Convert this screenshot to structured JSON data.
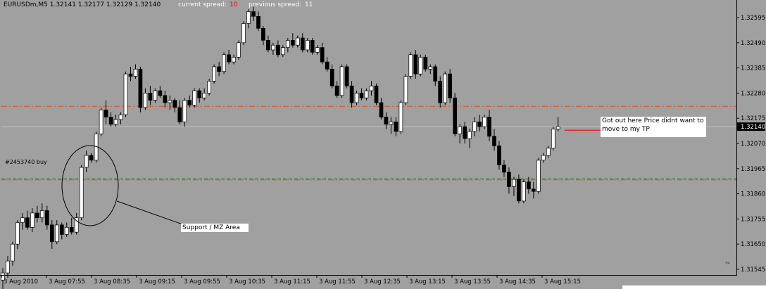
{
  "header": {
    "symbol_info": "EURUSDm,M5  1.32141 1.32177 1.32129 1.32140",
    "current_spread_label": "current spread:",
    "current_spread_value": "10",
    "previous_spread_label": "previous spread:",
    "previous_spread_value": "11"
  },
  "colors": {
    "background": "#a0a0a0",
    "bull_candle": "#ffffff",
    "bear_candle": "#000000",
    "tp_line": "#e05020",
    "entry_line_green": "#008000",
    "entry_line_red": "#e05020",
    "bid_line": "#c0c0c0",
    "exit_marker": "#ff0000",
    "current_price_label_bg": "#000000"
  },
  "chart_data": {
    "type": "candlestick",
    "symbol": "EURUSDm",
    "timeframe": "M5",
    "ylim": [
      1.3142,
      1.3264
    ],
    "y_ticks": [
      "1.32595",
      "1.32490",
      "1.32385",
      "1.32280",
      "1.32175",
      "1.32070",
      "1.31965",
      "1.31860",
      "1.31755",
      "1.31650",
      "1.31545"
    ],
    "x_ticks": [
      "3 Aug 2010",
      "3 Aug 07:55",
      "3 Aug 08:35",
      "3 Aug 09:15",
      "3 Aug 09:55",
      "3 Aug 10:35",
      "3 Aug 11:15",
      "3 Aug 11:55",
      "3 Aug 12:35",
      "3 Aug 13:15",
      "3 Aug 13:55",
      "3 Aug 14:35",
      "3 Aug 15:15"
    ],
    "current_price": "1.32140",
    "horizontal_lines": [
      {
        "kind": "take-profit",
        "price": 1.32225,
        "style": "dash-dot"
      },
      {
        "kind": "entry-green",
        "price": 1.31922,
        "style": "dashed"
      },
      {
        "kind": "entry-red",
        "price": 1.31918,
        "style": "dash-dot"
      },
      {
        "kind": "bid",
        "price": 1.3214,
        "style": "solid"
      }
    ],
    "order_label": "#2453740 buy",
    "annotations": [
      {
        "kind": "callout",
        "text": "Support / MZ Area"
      },
      {
        "kind": "callout",
        "text": "Got out here Price didnt want to move to my TP"
      }
    ],
    "candles": [
      {
        "o": 1.315,
        "h": 1.3155,
        "l": 1.3145,
        "c": 1.3153
      },
      {
        "o": 1.3153,
        "h": 1.316,
        "l": 1.3151,
        "c": 1.3158
      },
      {
        "o": 1.3158,
        "h": 1.3166,
        "l": 1.3156,
        "c": 1.3165
      },
      {
        "o": 1.3165,
        "h": 1.3175,
        "l": 1.3163,
        "c": 1.3174
      },
      {
        "o": 1.3174,
        "h": 1.3178,
        "l": 1.3171,
        "c": 1.3176
      },
      {
        "o": 1.3176,
        "h": 1.3179,
        "l": 1.3171,
        "c": 1.3172
      },
      {
        "o": 1.3172,
        "h": 1.318,
        "l": 1.317,
        "c": 1.3178
      },
      {
        "o": 1.3178,
        "h": 1.3181,
        "l": 1.3174,
        "c": 1.3176
      },
      {
        "o": 1.3176,
        "h": 1.3182,
        "l": 1.3174,
        "c": 1.3179
      },
      {
        "o": 1.3179,
        "h": 1.3181,
        "l": 1.3171,
        "c": 1.3173
      },
      {
        "o": 1.3173,
        "h": 1.3175,
        "l": 1.3163,
        "c": 1.3166
      },
      {
        "o": 1.3166,
        "h": 1.3175,
        "l": 1.3165,
        "c": 1.3173
      },
      {
        "o": 1.3173,
        "h": 1.3174,
        "l": 1.3167,
        "c": 1.3169
      },
      {
        "o": 1.3169,
        "h": 1.3174,
        "l": 1.3168,
        "c": 1.3172
      },
      {
        "o": 1.3172,
        "h": 1.3176,
        "l": 1.3169,
        "c": 1.317
      },
      {
        "o": 1.317,
        "h": 1.3178,
        "l": 1.3169,
        "c": 1.3176
      },
      {
        "o": 1.3176,
        "h": 1.3198,
        "l": 1.3175,
        "c": 1.3197
      },
      {
        "o": 1.3197,
        "h": 1.3204,
        "l": 1.3195,
        "c": 1.3202
      },
      {
        "o": 1.3202,
        "h": 1.3203,
        "l": 1.3199,
        "c": 1.32
      },
      {
        "o": 1.32,
        "h": 1.3212,
        "l": 1.3199,
        "c": 1.3211
      },
      {
        "o": 1.3211,
        "h": 1.3222,
        "l": 1.321,
        "c": 1.3221
      },
      {
        "o": 1.3221,
        "h": 1.3225,
        "l": 1.3215,
        "c": 1.3218
      },
      {
        "o": 1.3218,
        "h": 1.322,
        "l": 1.3214,
        "c": 1.3215
      },
      {
        "o": 1.3215,
        "h": 1.3219,
        "l": 1.3214,
        "c": 1.3217
      },
      {
        "o": 1.3217,
        "h": 1.322,
        "l": 1.3215,
        "c": 1.3219
      },
      {
        "o": 1.3219,
        "h": 1.3237,
        "l": 1.3218,
        "c": 1.3236
      },
      {
        "o": 1.3236,
        "h": 1.3239,
        "l": 1.3233,
        "c": 1.3235
      },
      {
        "o": 1.3235,
        "h": 1.324,
        "l": 1.3234,
        "c": 1.3238
      },
      {
        "o": 1.3238,
        "h": 1.3239,
        "l": 1.322,
        "c": 1.3222
      },
      {
        "o": 1.3222,
        "h": 1.323,
        "l": 1.3221,
        "c": 1.3228
      },
      {
        "o": 1.3228,
        "h": 1.3231,
        "l": 1.3223,
        "c": 1.3225
      },
      {
        "o": 1.3225,
        "h": 1.323,
        "l": 1.3224,
        "c": 1.3229
      },
      {
        "o": 1.3229,
        "h": 1.3231,
        "l": 1.3226,
        "c": 1.3227
      },
      {
        "o": 1.3227,
        "h": 1.3229,
        "l": 1.3222,
        "c": 1.3224
      },
      {
        "o": 1.3224,
        "h": 1.3227,
        "l": 1.3221,
        "c": 1.3225
      },
      {
        "o": 1.3225,
        "h": 1.3226,
        "l": 1.322,
        "c": 1.3222
      },
      {
        "o": 1.3222,
        "h": 1.3225,
        "l": 1.3215,
        "c": 1.3216
      },
      {
        "o": 1.3216,
        "h": 1.3226,
        "l": 1.3214,
        "c": 1.3225
      },
      {
        "o": 1.3225,
        "h": 1.3227,
        "l": 1.3222,
        "c": 1.3223
      },
      {
        "o": 1.3223,
        "h": 1.323,
        "l": 1.3222,
        "c": 1.3229
      },
      {
        "o": 1.3229,
        "h": 1.323,
        "l": 1.3224,
        "c": 1.3226
      },
      {
        "o": 1.3226,
        "h": 1.323,
        "l": 1.3225,
        "c": 1.3228
      },
      {
        "o": 1.3228,
        "h": 1.3234,
        "l": 1.3227,
        "c": 1.3233
      },
      {
        "o": 1.3233,
        "h": 1.324,
        "l": 1.3232,
        "c": 1.3239
      },
      {
        "o": 1.3239,
        "h": 1.3241,
        "l": 1.3235,
        "c": 1.3237
      },
      {
        "o": 1.3237,
        "h": 1.3245,
        "l": 1.3236,
        "c": 1.3244
      },
      {
        "o": 1.3244,
        "h": 1.3246,
        "l": 1.324,
        "c": 1.3241
      },
      {
        "o": 1.3241,
        "h": 1.3244,
        "l": 1.324,
        "c": 1.3243
      },
      {
        "o": 1.3243,
        "h": 1.325,
        "l": 1.3242,
        "c": 1.3249
      },
      {
        "o": 1.3249,
        "h": 1.3258,
        "l": 1.3248,
        "c": 1.3257
      },
      {
        "o": 1.3257,
        "h": 1.3263,
        "l": 1.3255,
        "c": 1.3262
      },
      {
        "o": 1.3262,
        "h": 1.3264,
        "l": 1.3258,
        "c": 1.326
      },
      {
        "o": 1.326,
        "h": 1.3262,
        "l": 1.3254,
        "c": 1.3255
      },
      {
        "o": 1.3255,
        "h": 1.3256,
        "l": 1.3248,
        "c": 1.325
      },
      {
        "o": 1.325,
        "h": 1.3252,
        "l": 1.3245,
        "c": 1.3246
      },
      {
        "o": 1.3246,
        "h": 1.3249,
        "l": 1.3244,
        "c": 1.3248
      },
      {
        "o": 1.3248,
        "h": 1.325,
        "l": 1.3243,
        "c": 1.3244
      },
      {
        "o": 1.3244,
        "h": 1.3248,
        "l": 1.3243,
        "c": 1.3247
      },
      {
        "o": 1.3247,
        "h": 1.3251,
        "l": 1.3245,
        "c": 1.325
      },
      {
        "o": 1.325,
        "h": 1.3253,
        "l": 1.3247,
        "c": 1.3248
      },
      {
        "o": 1.3248,
        "h": 1.3252,
        "l": 1.3247,
        "c": 1.3251
      },
      {
        "o": 1.3251,
        "h": 1.3253,
        "l": 1.3245,
        "c": 1.3246
      },
      {
        "o": 1.3246,
        "h": 1.3251,
        "l": 1.3245,
        "c": 1.325
      },
      {
        "o": 1.325,
        "h": 1.3251,
        "l": 1.3244,
        "c": 1.3245
      },
      {
        "o": 1.3245,
        "h": 1.3248,
        "l": 1.3244,
        "c": 1.3247
      },
      {
        "o": 1.3247,
        "h": 1.3249,
        "l": 1.324,
        "c": 1.3241
      },
      {
        "o": 1.3241,
        "h": 1.3243,
        "l": 1.3237,
        "c": 1.3238
      },
      {
        "o": 1.3238,
        "h": 1.324,
        "l": 1.323,
        "c": 1.3231
      },
      {
        "o": 1.3231,
        "h": 1.3233,
        "l": 1.3226,
        "c": 1.3227
      },
      {
        "o": 1.3227,
        "h": 1.324,
        "l": 1.3226,
        "c": 1.3239
      },
      {
        "o": 1.3239,
        "h": 1.324,
        "l": 1.323,
        "c": 1.3231
      },
      {
        "o": 1.3231,
        "h": 1.3233,
        "l": 1.3222,
        "c": 1.3224
      },
      {
        "o": 1.3224,
        "h": 1.3229,
        "l": 1.3223,
        "c": 1.3228
      },
      {
        "o": 1.3228,
        "h": 1.323,
        "l": 1.3225,
        "c": 1.3226
      },
      {
        "o": 1.3226,
        "h": 1.323,
        "l": 1.3225,
        "c": 1.3229
      },
      {
        "o": 1.3229,
        "h": 1.3233,
        "l": 1.3227,
        "c": 1.3231
      },
      {
        "o": 1.3231,
        "h": 1.3232,
        "l": 1.3223,
        "c": 1.3224
      },
      {
        "o": 1.3224,
        "h": 1.3226,
        "l": 1.3217,
        "c": 1.3218
      },
      {
        "o": 1.3218,
        "h": 1.322,
        "l": 1.3213,
        "c": 1.3215
      },
      {
        "o": 1.3215,
        "h": 1.3218,
        "l": 1.3211,
        "c": 1.3216
      },
      {
        "o": 1.3216,
        "h": 1.3218,
        "l": 1.321,
        "c": 1.3212
      },
      {
        "o": 1.3212,
        "h": 1.3225,
        "l": 1.3211,
        "c": 1.3224
      },
      {
        "o": 1.3224,
        "h": 1.3236,
        "l": 1.3223,
        "c": 1.3235
      },
      {
        "o": 1.3235,
        "h": 1.3245,
        "l": 1.3234,
        "c": 1.3244
      },
      {
        "o": 1.3244,
        "h": 1.3246,
        "l": 1.3234,
        "c": 1.3236
      },
      {
        "o": 1.3236,
        "h": 1.3244,
        "l": 1.3235,
        "c": 1.3243
      },
      {
        "o": 1.3243,
        "h": 1.3244,
        "l": 1.3237,
        "c": 1.3238
      },
      {
        "o": 1.3238,
        "h": 1.324,
        "l": 1.3236,
        "c": 1.3239
      },
      {
        "o": 1.3239,
        "h": 1.324,
        "l": 1.3231,
        "c": 1.3233
      },
      {
        "o": 1.3233,
        "h": 1.3235,
        "l": 1.3222,
        "c": 1.3224
      },
      {
        "o": 1.3224,
        "h": 1.3237,
        "l": 1.3223,
        "c": 1.3236
      },
      {
        "o": 1.3236,
        "h": 1.3238,
        "l": 1.3224,
        "c": 1.3226
      },
      {
        "o": 1.3226,
        "h": 1.3228,
        "l": 1.321,
        "c": 1.3211
      },
      {
        "o": 1.3211,
        "h": 1.3215,
        "l": 1.3207,
        "c": 1.3214
      },
      {
        "o": 1.3214,
        "h": 1.3216,
        "l": 1.3207,
        "c": 1.3209
      },
      {
        "o": 1.3209,
        "h": 1.3213,
        "l": 1.3205,
        "c": 1.3212
      },
      {
        "o": 1.3212,
        "h": 1.3218,
        "l": 1.321,
        "c": 1.3216
      },
      {
        "o": 1.3216,
        "h": 1.3219,
        "l": 1.3212,
        "c": 1.3214
      },
      {
        "o": 1.3214,
        "h": 1.3219,
        "l": 1.3213,
        "c": 1.3218
      },
      {
        "o": 1.3218,
        "h": 1.3221,
        "l": 1.3208,
        "c": 1.321
      },
      {
        "o": 1.321,
        "h": 1.3213,
        "l": 1.3204,
        "c": 1.3206
      },
      {
        "o": 1.3206,
        "h": 1.3208,
        "l": 1.3196,
        "c": 1.3198
      },
      {
        "o": 1.3198,
        "h": 1.32,
        "l": 1.3193,
        "c": 1.3195
      },
      {
        "o": 1.3195,
        "h": 1.3197,
        "l": 1.3186,
        "c": 1.3189
      },
      {
        "o": 1.3189,
        "h": 1.3193,
        "l": 1.3185,
        "c": 1.3192
      },
      {
        "o": 1.3192,
        "h": 1.3194,
        "l": 1.3182,
        "c": 1.3183
      },
      {
        "o": 1.3183,
        "h": 1.3192,
        "l": 1.3182,
        "c": 1.3191
      },
      {
        "o": 1.3191,
        "h": 1.3193,
        "l": 1.3186,
        "c": 1.3188
      },
      {
        "o": 1.3188,
        "h": 1.3191,
        "l": 1.3184,
        "c": 1.3187
      },
      {
        "o": 1.3187,
        "h": 1.3201,
        "l": 1.3186,
        "c": 1.32
      },
      {
        "o": 1.32,
        "h": 1.3203,
        "l": 1.3199,
        "c": 1.3202
      },
      {
        "o": 1.3202,
        "h": 1.3206,
        "l": 1.3201,
        "c": 1.3205
      },
      {
        "o": 1.3205,
        "h": 1.3214,
        "l": 1.3204,
        "c": 1.3213
      },
      {
        "o": 1.3213,
        "h": 1.3218,
        "l": 1.3212,
        "c": 1.3214
      }
    ]
  }
}
